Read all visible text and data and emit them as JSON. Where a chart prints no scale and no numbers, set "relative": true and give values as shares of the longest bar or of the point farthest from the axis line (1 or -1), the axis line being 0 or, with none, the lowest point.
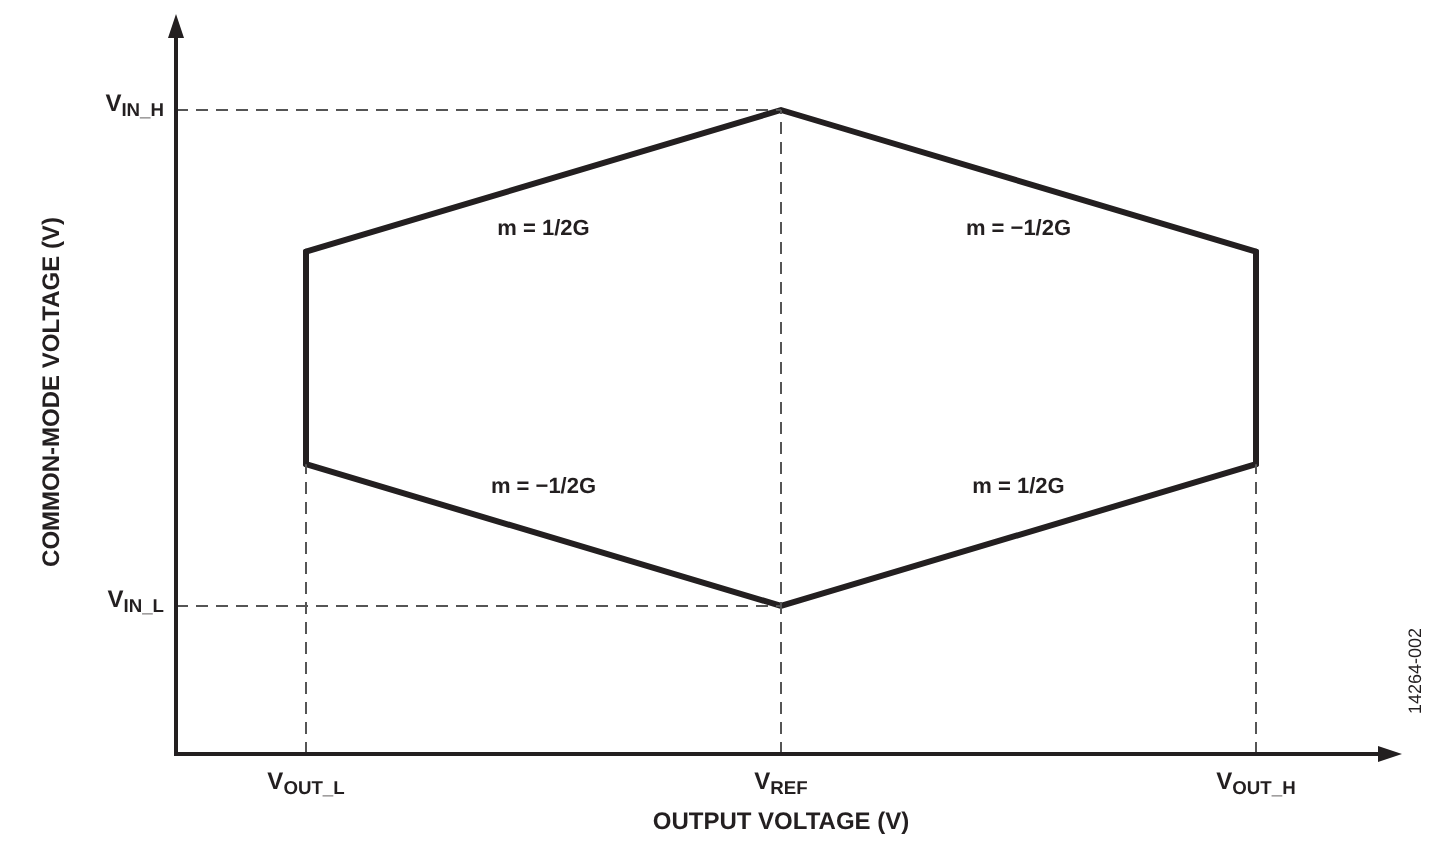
{
  "chart_data": {
    "type": "line",
    "relative": true,
    "xlabel": "OUTPUT VOLTAGE (V)",
    "ylabel": "COMMON-MODE VOLTAGE (V)",
    "categories": [
      "V$_{OUT_L}$",
      "V$_{REF}$",
      "V$_{OUT_H}$"
    ],
    "series": [
      {
        "color": "#231f20",
        "values": [
          0.78,
          1,
          0.78
        ]
      },
      {
        "color": "#231f20",
        "values": [
          0.45,
          0.23,
          0.45
        ]
      },
      {
        "color": "#231f20",
        "x": [
          "V$_{OUT_L}$",
          "V$_{OUT_L}$"
        ],
        "values": [
          0.45,
          0.78
        ]
      },
      {
        "color": "#231f20",
        "x": [
          "V$_{OUT_H}$",
          "V$_{OUT_H}$"
        ],
        "values": [
          0.45,
          0.78
        ]
      }
    ],
    "ref_lines": [
      {
        "axis": "y",
        "value": 1,
        "label": "V$_{IN_H}$",
        "line_style": "dashed",
        "color": "#555555"
      },
      {
        "axis": "y",
        "value": 0.23,
        "label": "V$_{IN_L}$",
        "line_style": "dashed",
        "color": "#555555"
      },
      {
        "axis": "x",
        "value": "V$_{OUT_L}$",
        "line_style": "dashed",
        "color": "#555555"
      },
      {
        "axis": "x",
        "value": "V$_{REF}$",
        "line_style": "dashed",
        "color": "#555555"
      },
      {
        "axis": "x",
        "value": "V$_{OUT_H}$",
        "line_style": "dashed",
        "color": "#555555"
      }
    ],
    "annotations": [
      "m = 1/2G",
      "m = −1/2G",
      "m = −1/2G",
      "m = 1/2G",
      "14264-002"
    ]
  }
}
